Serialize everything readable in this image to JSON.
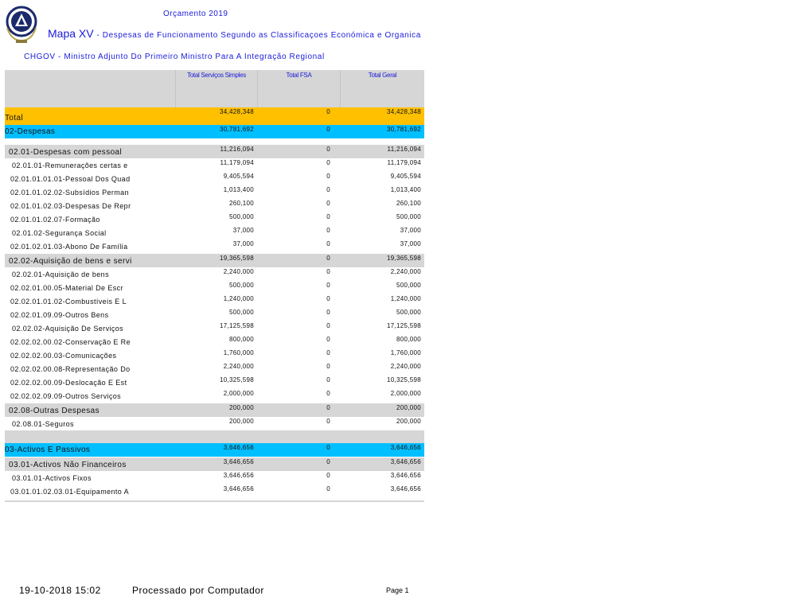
{
  "header": {
    "budget": "Orçamento 2019",
    "map_title": "Mapa XV",
    "map_subtitle": "- Despesas de Funcionamento Segundo as Classificaçoes Económica e Organica",
    "organization": "CHGOV - Ministro Adjunto Do Primeiro Ministro Para A Integração Regional"
  },
  "colors": {
    "total": "#FFC000",
    "level1": "#00BFFF",
    "level2": "#D6D6D6",
    "text_blue": "#1A1ADC"
  },
  "table": {
    "columns": [
      "",
      "Total Serviços Simples",
      "Total FSA",
      "Total Geral"
    ],
    "rows": [
      {
        "type": "total",
        "label": "Total",
        "simples": "34,428,348",
        "fsa": "0",
        "geral": "34,428,348"
      },
      {
        "type": "l1",
        "label": "02-Despesas",
        "simples": "30,781,692",
        "fsa": "0",
        "geral": "30,781,692"
      },
      {
        "type": "spacer"
      },
      {
        "type": "l2",
        "label": "02.01-Despesas com pessoal",
        "simples": "11,216,094",
        "fsa": "0",
        "geral": "11,216,094"
      },
      {
        "type": "l3",
        "label": "02.01.01-Remunerações certas e",
        "simples": "11,179,094",
        "fsa": "0",
        "geral": "11,179,094"
      },
      {
        "type": "l4",
        "label": "02.01.01.01.01-Pessoal Dos Quad",
        "simples": "9,405,594",
        "fsa": "0",
        "geral": "9,405,594"
      },
      {
        "type": "l4",
        "label": "02.01.01.02.02-Subsídios Perman",
        "simples": "1,013,400",
        "fsa": "0",
        "geral": "1,013,400"
      },
      {
        "type": "l4",
        "label": "02.01.01.02.03-Despesas De Repr",
        "simples": "260,100",
        "fsa": "0",
        "geral": "260,100"
      },
      {
        "type": "l4",
        "label": "02.01.01.02.07-Formação",
        "simples": "500,000",
        "fsa": "0",
        "geral": "500,000"
      },
      {
        "type": "l3",
        "label": "02.01.02-Segurança Social",
        "simples": "37,000",
        "fsa": "0",
        "geral": "37,000"
      },
      {
        "type": "l4",
        "label": "02.01.02.01.03-Abono De Família",
        "simples": "37,000",
        "fsa": "0",
        "geral": "37,000"
      },
      {
        "type": "l2",
        "label": "02.02-Aquisição de bens e servi",
        "simples": "19,365,598",
        "fsa": "0",
        "geral": "19,365,598"
      },
      {
        "type": "l3",
        "label": "02.02.01-Aquisição de bens",
        "simples": "2,240,000",
        "fsa": "0",
        "geral": "2,240,000"
      },
      {
        "type": "l4",
        "label": "02.02.01.00.05-Material De Escr",
        "simples": "500,000",
        "fsa": "0",
        "geral": "500,000"
      },
      {
        "type": "l4",
        "label": "02.02.01.01.02-Combustíveis E L",
        "simples": "1,240,000",
        "fsa": "0",
        "geral": "1,240,000"
      },
      {
        "type": "l4",
        "label": "02.02.01.09.09-Outros Bens",
        "simples": "500,000",
        "fsa": "0",
        "geral": "500,000"
      },
      {
        "type": "l3",
        "label": "02.02.02-Aquisição De Serviços",
        "simples": "17,125,598",
        "fsa": "0",
        "geral": "17,125,598"
      },
      {
        "type": "l4",
        "label": "02.02.02.00.02-Conservação E Re",
        "simples": "800,000",
        "fsa": "0",
        "geral": "800,000"
      },
      {
        "type": "l4",
        "label": "02.02.02.00.03-Comunicações",
        "simples": "1,760,000",
        "fsa": "0",
        "geral": "1,760,000"
      },
      {
        "type": "l4",
        "label": "02.02.02.00.08-Representação Do",
        "simples": "2,240,000",
        "fsa": "0",
        "geral": "2,240,000"
      },
      {
        "type": "l4",
        "label": "02.02.02.00.09-Deslocação E Est",
        "simples": "10,325,598",
        "fsa": "0",
        "geral": "10,325,598"
      },
      {
        "type": "l4",
        "label": "02.02.02.09.09-Outros Serviços",
        "simples": "2,000,000",
        "fsa": "0",
        "geral": "2,000,000"
      },
      {
        "type": "l2",
        "label": "02.08-Outras Despesas",
        "simples": "200,000",
        "fsa": "0",
        "geral": "200,000"
      },
      {
        "type": "l3",
        "label": "02.08.01-Seguros",
        "simples": "200,000",
        "fsa": "0",
        "geral": "200,000"
      },
      {
        "type": "blank"
      },
      {
        "type": "l1",
        "label": "03-Activos E Passivos",
        "simples": "3,646,656",
        "fsa": "0",
        "geral": "3,646,656"
      },
      {
        "type": "l2",
        "label": "03.01-Activos Não Financeiros",
        "simples": "3,646,656",
        "fsa": "0",
        "geral": "3,646,656"
      },
      {
        "type": "l3",
        "label": "03.01.01-Activos Fixos",
        "simples": "3,646,656",
        "fsa": "0",
        "geral": "3,646,656"
      },
      {
        "type": "l4",
        "label": "03.01.01.02.03.01-Equipamento A",
        "simples": "3,646,656",
        "fsa": "0",
        "geral": "3,646,656"
      }
    ]
  },
  "footer": {
    "datetime": "19-10-2018 15:02",
    "processed": "Processado por Computador",
    "page": "Page 1"
  }
}
